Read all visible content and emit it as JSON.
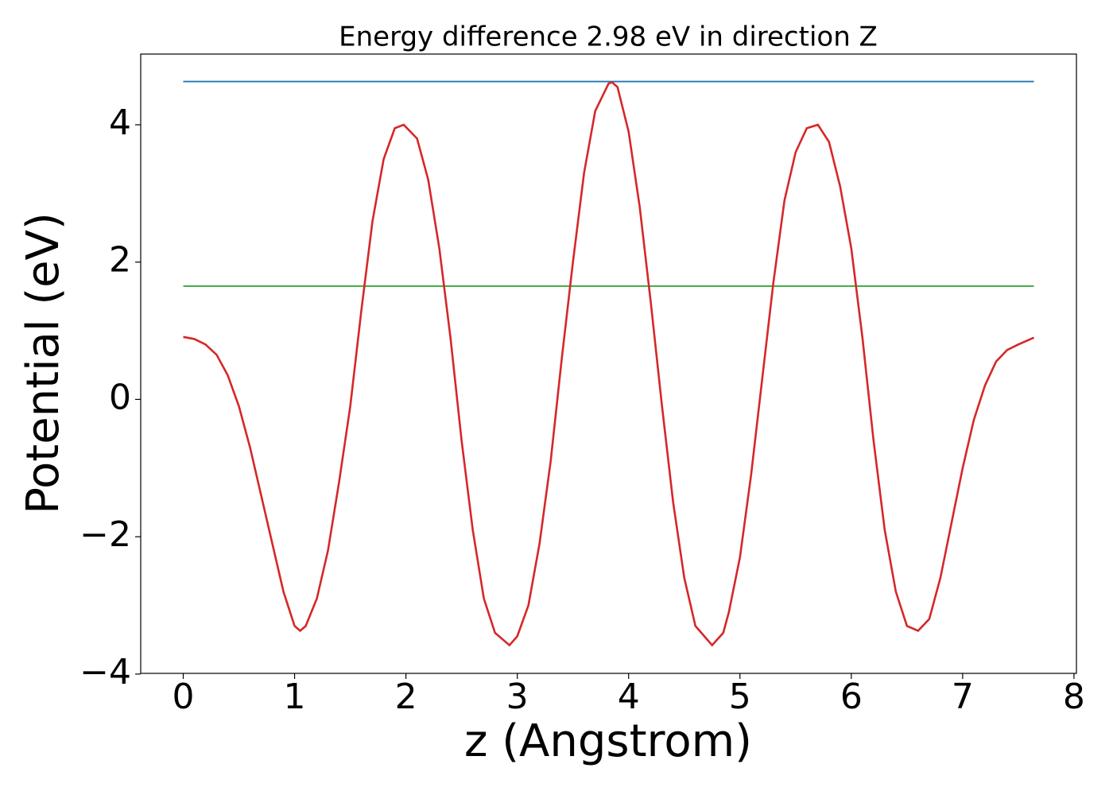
{
  "chart_data": {
    "type": "line",
    "title": "Energy difference 2.98 eV in direction Z",
    "xlabel": "z (Angstrom)",
    "ylabel": "Potential (eV)",
    "xlim": [
      -0.382,
      8.022
    ],
    "ylim": [
      -3.99,
      5.03
    ],
    "xticks": [
      0,
      1,
      2,
      3,
      4,
      5,
      6,
      7,
      8
    ],
    "yticks": [
      {
        "value": -4,
        "label": "−4"
      },
      {
        "value": -2,
        "label": "−2"
      },
      0,
      2,
      4
    ],
    "grid": false,
    "series": [
      {
        "color": "#1f77b4",
        "x": [
          0,
          7.64
        ],
        "values": [
          4.63,
          4.63
        ]
      },
      {
        "color": "#2ca02c",
        "x": [
          0,
          7.64
        ],
        "values": [
          1.65,
          1.65
        ]
      },
      {
        "color": "#d62728",
        "x": [
          0,
          0.1,
          0.2,
          0.3,
          0.4,
          0.5,
          0.6,
          0.7,
          0.8,
          0.9,
          1.0,
          1.05,
          1.1,
          1.2,
          1.3,
          1.4,
          1.5,
          1.6,
          1.7,
          1.8,
          1.9,
          1.98,
          2.1,
          2.2,
          2.3,
          2.4,
          2.5,
          2.6,
          2.7,
          2.8,
          2.93,
          3.0,
          3.1,
          3.2,
          3.3,
          3.4,
          3.5,
          3.6,
          3.7,
          3.82,
          3.85,
          3.9,
          4.0,
          4.1,
          4.2,
          4.3,
          4.4,
          4.5,
          4.6,
          4.75,
          4.85,
          4.9,
          5.0,
          5.1,
          5.2,
          5.3,
          5.4,
          5.5,
          5.6,
          5.7,
          5.8,
          5.9,
          6.0,
          6.1,
          6.2,
          6.3,
          6.4,
          6.5,
          6.6,
          6.7,
          6.8,
          6.9,
          7.0,
          7.1,
          7.2,
          7.3,
          7.4,
          7.5,
          7.64
        ],
        "values": [
          0.91,
          0.88,
          0.8,
          0.65,
          0.35,
          -0.1,
          -0.7,
          -1.4,
          -2.1,
          -2.8,
          -3.3,
          -3.37,
          -3.3,
          -2.9,
          -2.2,
          -1.2,
          -0.1,
          1.3,
          2.6,
          3.5,
          3.95,
          4.0,
          3.8,
          3.2,
          2.2,
          0.9,
          -0.6,
          -1.9,
          -2.9,
          -3.4,
          -3.58,
          -3.45,
          -3.0,
          -2.1,
          -0.9,
          0.6,
          2.0,
          3.3,
          4.2,
          4.6,
          4.62,
          4.55,
          3.9,
          2.8,
          1.4,
          -0.1,
          -1.5,
          -2.6,
          -3.3,
          -3.58,
          -3.4,
          -3.1,
          -2.3,
          -1.1,
          0.3,
          1.7,
          2.9,
          3.6,
          3.95,
          4.0,
          3.75,
          3.1,
          2.2,
          0.9,
          -0.6,
          -1.9,
          -2.8,
          -3.3,
          -3.37,
          -3.2,
          -2.6,
          -1.8,
          -1.0,
          -0.3,
          0.2,
          0.55,
          0.72,
          0.8,
          0.9
        ]
      }
    ]
  }
}
